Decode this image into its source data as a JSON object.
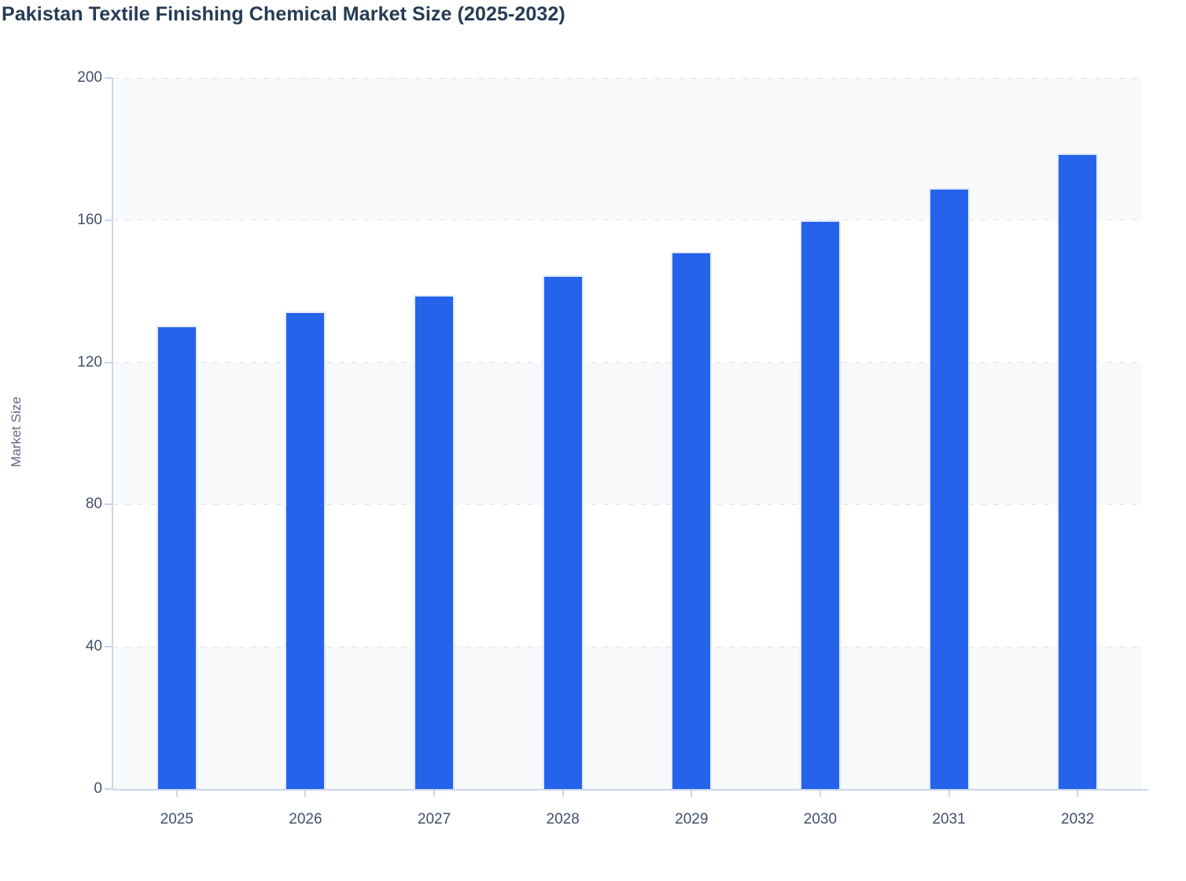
{
  "header": {
    "title": "Pakistan Textile Finishing Chemical Market Size (2025-2032)"
  },
  "chart_data": {
    "type": "bar",
    "title": "Pakistan Textile Finishing Chemical Market Size (2025-2032)",
    "categories": [
      "2025",
      "2026",
      "2027",
      "2028",
      "2029",
      "2030",
      "2031",
      "2032"
    ],
    "series": [
      {
        "name": "Market Size",
        "values": [
          130.4,
          134.4,
          138.9,
          144.4,
          151.2,
          159.9,
          169.0,
          178.8
        ]
      }
    ],
    "xlabel": "",
    "ylabel": "Market Size",
    "ylim": [
      0,
      200
    ],
    "yticks": [
      0,
      40,
      80,
      120,
      160,
      200
    ],
    "grid": "horizontal-dashed",
    "legend_position": "none",
    "bar_color": "#2563eb",
    "row_stripe_colors": [
      "#f8f9fb",
      "#ffffff"
    ]
  },
  "colors": {
    "bar": "#2563eb",
    "bar_stroke": "#e2eafa",
    "axis_line": "#ccd6ec",
    "grid_line": "#e2e4e8",
    "tick_label": "#42506b",
    "title_text": "#253b55",
    "axis_title_text": "#5b6880",
    "row_stripe": "#f8f9fb",
    "background": "#ffffff"
  }
}
